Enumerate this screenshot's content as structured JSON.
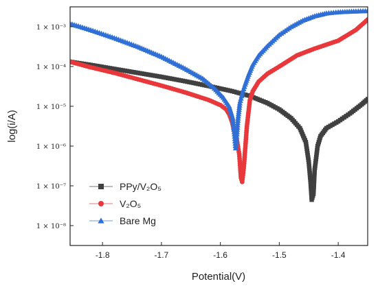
{
  "chart_data": {
    "type": "scatter",
    "xlabel": "Potential(V)",
    "ylabel": "log(i/A)",
    "xlim": [
      -1.855,
      -1.35
    ],
    "ylim": [
      -8.5,
      -2.5
    ],
    "y_scale": "log",
    "grid": false,
    "legend_position": "bottom-left",
    "x_ticks": [
      {
        "value": -1.8,
        "label": "-1.8"
      },
      {
        "value": -1.7,
        "label": "-1.7"
      },
      {
        "value": -1.6,
        "label": "-1.6"
      },
      {
        "value": -1.5,
        "label": "-1.5"
      },
      {
        "value": -1.4,
        "label": "-1.4"
      }
    ],
    "y_ticks": [
      {
        "value": -3,
        "label": "1 × 10⁻³"
      },
      {
        "value": -4,
        "label": "1 × 10⁻⁴"
      },
      {
        "value": -5,
        "label": "1 × 10⁻⁵"
      },
      {
        "value": -6,
        "label": "1 × 10⁻⁶"
      },
      {
        "value": -7,
        "label": "1 × 10⁻⁷"
      },
      {
        "value": -8,
        "label": "1 × 10⁻⁸"
      }
    ],
    "series": [
      {
        "name": "PPy/V₂O₅",
        "color": "#404040",
        "marker": "square",
        "points": [
          [
            -1.855,
            -3.88
          ],
          [
            -1.82,
            -3.96
          ],
          [
            -1.78,
            -4.06
          ],
          [
            -1.74,
            -4.16
          ],
          [
            -1.7,
            -4.26
          ],
          [
            -1.66,
            -4.37
          ],
          [
            -1.62,
            -4.49
          ],
          [
            -1.58,
            -4.62
          ],
          [
            -1.55,
            -4.74
          ],
          [
            -1.52,
            -4.92
          ],
          [
            -1.5,
            -5.08
          ],
          [
            -1.48,
            -5.3
          ],
          [
            -1.465,
            -5.55
          ],
          [
            -1.455,
            -5.9
          ],
          [
            -1.45,
            -6.4
          ],
          [
            -1.447,
            -6.9
          ],
          [
            -1.445,
            -7.35
          ],
          [
            -1.442,
            -7.2
          ],
          [
            -1.44,
            -6.6
          ],
          [
            -1.435,
            -6.0
          ],
          [
            -1.43,
            -5.75
          ],
          [
            -1.42,
            -5.55
          ],
          [
            -1.4,
            -5.38
          ],
          [
            -1.38,
            -5.18
          ],
          [
            -1.36,
            -4.95
          ],
          [
            -1.35,
            -4.82
          ]
        ]
      },
      {
        "name": "V₂O₅",
        "color": "#e8383b",
        "marker": "circle",
        "points": [
          [
            -1.855,
            -3.88
          ],
          [
            -1.82,
            -4.02
          ],
          [
            -1.78,
            -4.16
          ],
          [
            -1.74,
            -4.32
          ],
          [
            -1.7,
            -4.48
          ],
          [
            -1.66,
            -4.65
          ],
          [
            -1.62,
            -4.84
          ],
          [
            -1.6,
            -4.97
          ],
          [
            -1.59,
            -5.08
          ],
          [
            -1.585,
            -5.2
          ],
          [
            -1.58,
            -5.4
          ],
          [
            -1.577,
            -5.6
          ],
          [
            -1.572,
            -5.85
          ],
          [
            -1.568,
            -6.2
          ],
          [
            -1.566,
            -6.6
          ],
          [
            -1.565,
            -6.8
          ],
          [
            -1.563,
            -6.9
          ],
          [
            -1.56,
            -6.5
          ],
          [
            -1.555,
            -5.5
          ],
          [
            -1.55,
            -4.85
          ],
          [
            -1.545,
            -4.62
          ],
          [
            -1.535,
            -4.38
          ],
          [
            -1.52,
            -4.18
          ],
          [
            -1.5,
            -4.0
          ],
          [
            -1.47,
            -3.72
          ],
          [
            -1.44,
            -3.55
          ],
          [
            -1.4,
            -3.35
          ],
          [
            -1.37,
            -3.08
          ],
          [
            -1.35,
            -2.82
          ]
        ]
      },
      {
        "name": "Bare Mg",
        "color": "#2f6fd6",
        "marker": "triangle",
        "points": [
          [
            -1.855,
            -2.92
          ],
          [
            -1.82,
            -3.08
          ],
          [
            -1.78,
            -3.28
          ],
          [
            -1.74,
            -3.5
          ],
          [
            -1.7,
            -3.75
          ],
          [
            -1.66,
            -4.05
          ],
          [
            -1.63,
            -4.3
          ],
          [
            -1.61,
            -4.55
          ],
          [
            -1.595,
            -4.78
          ],
          [
            -1.585,
            -5.0
          ],
          [
            -1.579,
            -5.3
          ],
          [
            -1.576,
            -5.7
          ],
          [
            -1.574,
            -6.05
          ],
          [
            -1.572,
            -5.7
          ],
          [
            -1.57,
            -5.3
          ],
          [
            -1.567,
            -4.92
          ],
          [
            -1.563,
            -4.68
          ],
          [
            -1.558,
            -4.45
          ],
          [
            -1.552,
            -4.2
          ],
          [
            -1.545,
            -3.95
          ],
          [
            -1.535,
            -3.72
          ],
          [
            -1.52,
            -3.48
          ],
          [
            -1.5,
            -3.2
          ],
          [
            -1.48,
            -3.0
          ],
          [
            -1.46,
            -2.84
          ],
          [
            -1.44,
            -2.73
          ],
          [
            -1.42,
            -2.66
          ],
          [
            -1.4,
            -2.63
          ],
          [
            -1.37,
            -2.61
          ],
          [
            -1.35,
            -2.6
          ]
        ]
      }
    ]
  }
}
